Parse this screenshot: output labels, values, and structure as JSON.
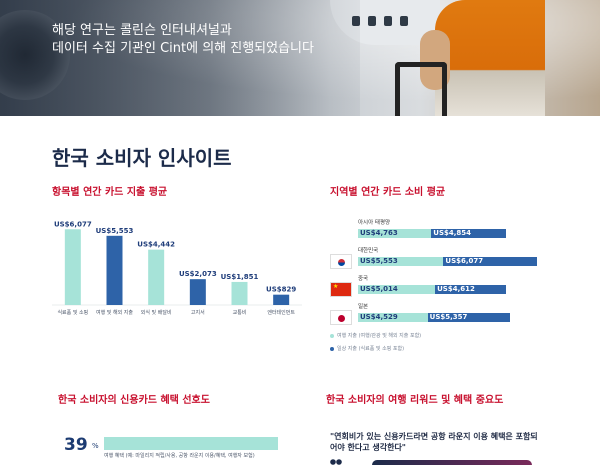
{
  "hero": {
    "line1": "해당 연구는 콜린슨 인터내셔널과",
    "line2": "데이터 수집 기관인 Cint에 의해 진행되었습니다"
  },
  "main_title": "한국 소비자 인사이트",
  "sections": {
    "category_spend": "항목별 연간 카드 지출 평균",
    "region_spend": "지역별 연간 카드 소비 평균",
    "benefit_pref": "한국 소비자의 신용카드 혜택 선호도",
    "reward_importance": "한국 소비자의 여행 리워드 및 혜택 중요도"
  },
  "chart_data": [
    {
      "type": "bar",
      "title": "항목별 연간 카드 지출 평균",
      "categories": [
        "식료품 및 소핑",
        "여행 및 해외 지출",
        "외식 및 배달비",
        "고지서",
        "교통비",
        "엔터테인먼트"
      ],
      "values": [
        6077,
        5553,
        4442,
        2073,
        1851,
        829
      ],
      "value_labels": [
        "US$6,077",
        "US$5,553",
        "US$4,442",
        "US$2,073",
        "US$1,851",
        "US$829"
      ],
      "colors": [
        "#a6e3d8",
        "#2e63a8",
        "#a6e3d8",
        "#2e63a8",
        "#a6e3d8",
        "#2e63a8"
      ],
      "ylim": [
        0,
        6500
      ]
    },
    {
      "type": "bar",
      "title": "지역별 연간 카드 소비 평균",
      "orientation": "horizontal",
      "categories": [
        "아시아 태평양",
        "대한민국",
        "중국",
        "일본"
      ],
      "series": [
        {
          "name": "여행 지출 (여행/관광 및 해외 지출 포함)",
          "values": [
            4763,
            5553,
            5014,
            4529
          ],
          "labels": [
            "US$4,763",
            "US$5,553",
            "US$5,014",
            "US$4,529"
          ],
          "color": "#a6e3d8"
        },
        {
          "name": "일상 지출 (식료품 및 소핑 포함)",
          "values": [
            4854,
            6077,
            4612,
            5357
          ],
          "labels": [
            "US$4,854",
            "US$6,077",
            "US$4,612",
            "US$5,357"
          ],
          "color": "#2e63a8"
        }
      ]
    }
  ],
  "preference": {
    "value": 39,
    "value_label": "39",
    "pct_symbol": "%",
    "label": "여행 혜택 (예: 마일리지 적립/사용, 공항 라운지 이용/혜택, 여행자 보험)"
  },
  "quote": "\"연회비가 있는 신용카드라면 공항 라운지 이용 혜택은 포함되어야 한다고 생각한다\""
}
